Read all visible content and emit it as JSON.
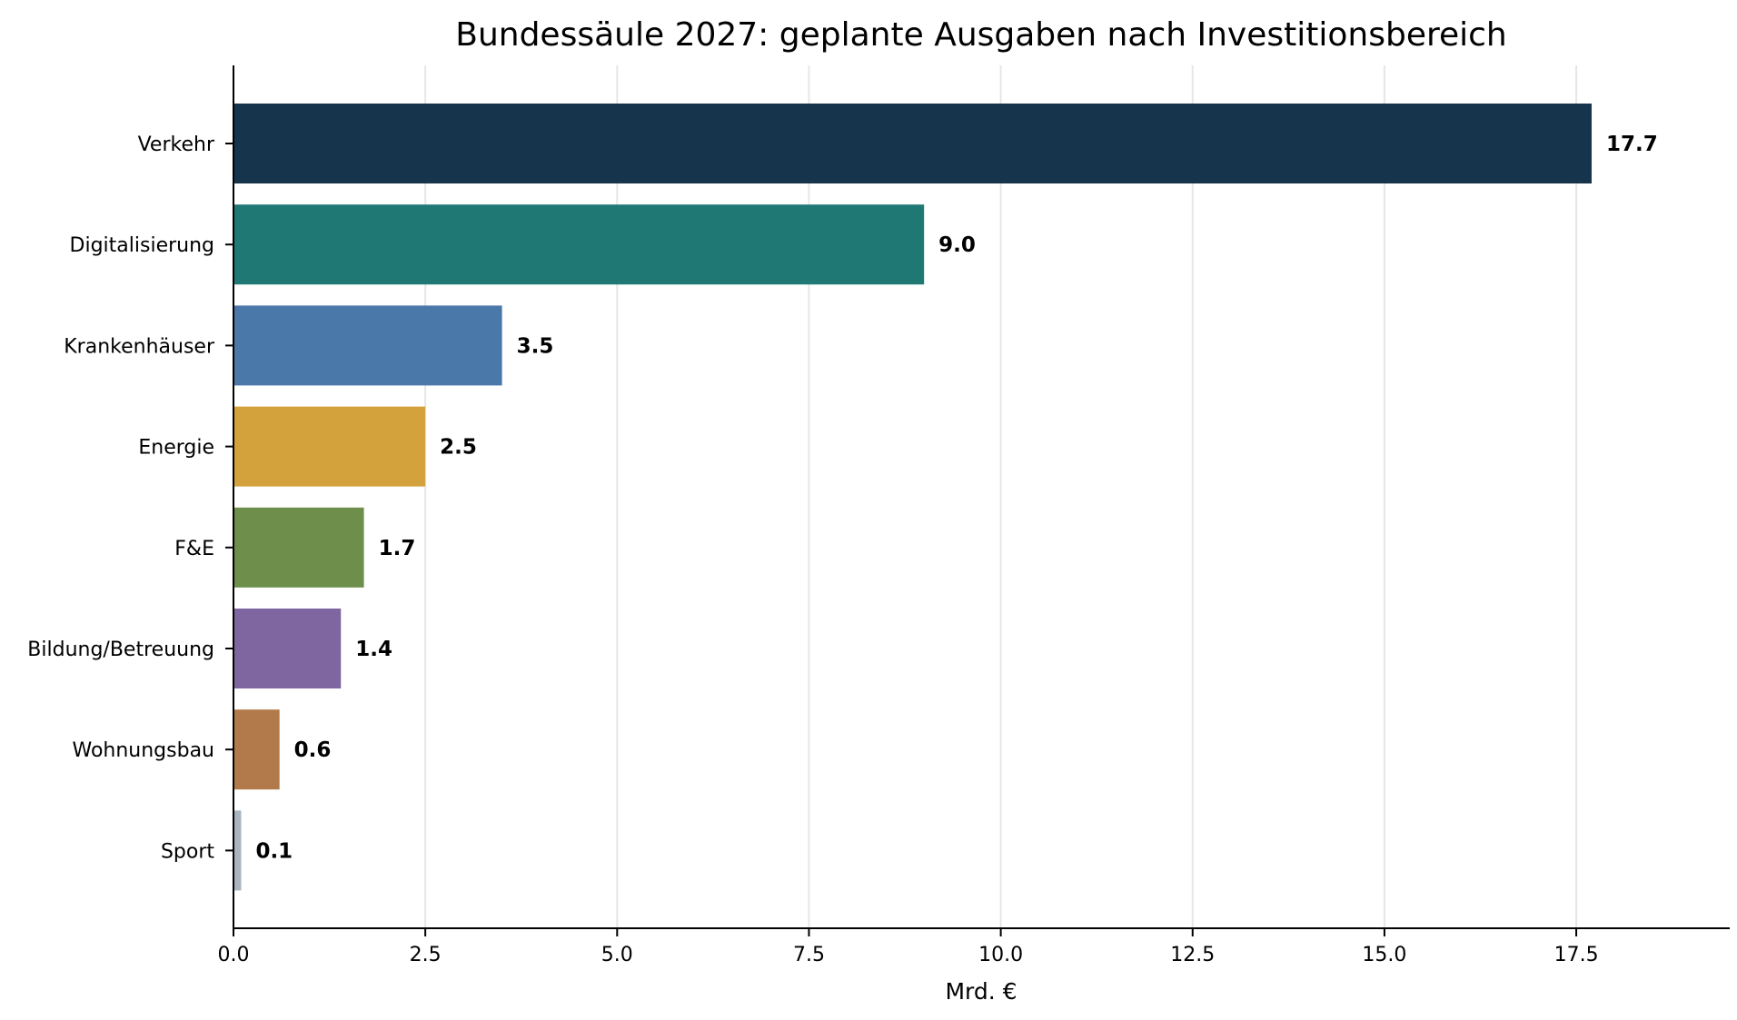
{
  "chart_data": {
    "type": "bar",
    "orientation": "horizontal",
    "title": "Bundessäule 2027: geplante Ausgaben nach Investitionsbereich",
    "xlabel": "Mrd. €",
    "ylabel": "",
    "categories": [
      "Verkehr",
      "Digitalisierung",
      "Krankenhäuser",
      "Energie",
      "F&E",
      "Bildung/Betreuung",
      "Wohnungsbau",
      "Sport"
    ],
    "values": [
      17.7,
      9.0,
      3.5,
      2.5,
      1.7,
      1.4,
      0.6,
      0.1
    ],
    "value_labels": [
      "17.7",
      "9.0",
      "3.5",
      "2.5",
      "1.7",
      "1.4",
      "0.6",
      "0.1"
    ],
    "colors": [
      "#17344d",
      "#1f7874",
      "#4a78a8",
      "#d4a23d",
      "#6d8f4b",
      "#8066a0",
      "#b27a4a",
      "#a9b4bf"
    ],
    "xlim": [
      0,
      19.5
    ],
    "xticks": [
      0,
      2.5,
      5,
      7.5,
      10,
      12.5,
      15,
      17.5
    ],
    "xtick_labels": [
      "0.0",
      "2.5",
      "5.0",
      "7.5",
      "10.0",
      "12.5",
      "15.0",
      "17.5"
    ],
    "grid": "vertical",
    "legend": "none"
  }
}
